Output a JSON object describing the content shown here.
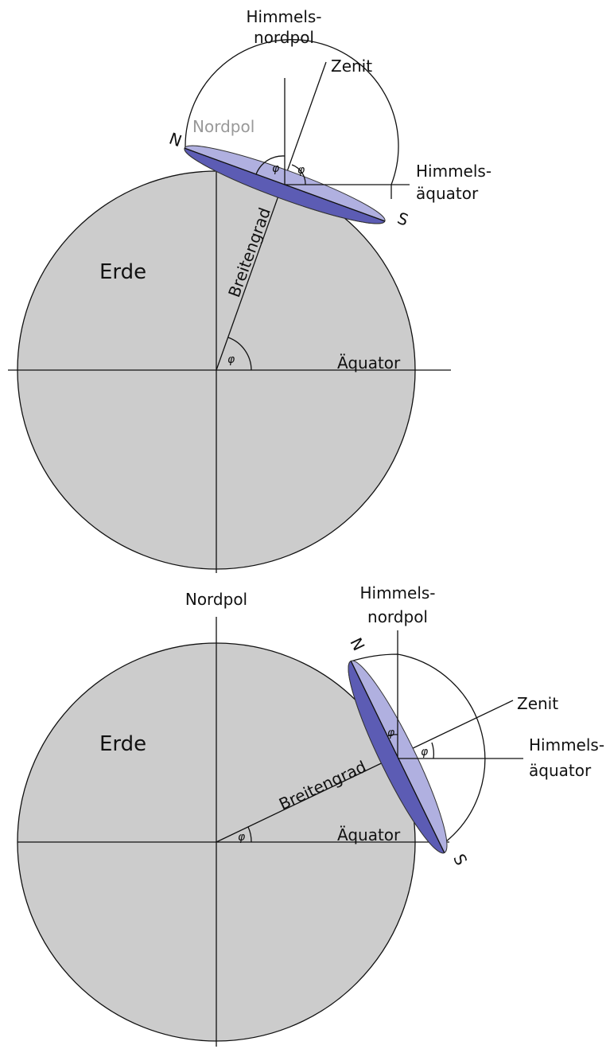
{
  "top": {
    "celestial_pole": [
      "Himmels-",
      "nordpol"
    ],
    "zenith": "Zenit",
    "north": "N",
    "north_pole": "Nordpol",
    "phi": [
      "φ",
      "φ",
      "φ"
    ],
    "celestial_equator": [
      "Himmels-",
      "äquator"
    ],
    "south": "S",
    "earth": "Erde",
    "latitude": "Breitengrad",
    "equator": "Äquator"
  },
  "bottom": {
    "celestial_pole": [
      "Himmels-",
      "nordpol"
    ],
    "zenith": "Zenit",
    "north": "N",
    "north_pole": "Nordpol",
    "phi": [
      "φ",
      "φ",
      "φ"
    ],
    "celestial_equator": [
      "Himmels-",
      "äquator"
    ],
    "south": "S",
    "earth": "Erde",
    "latitude": "Breitengrad",
    "equator": "Äquator"
  }
}
